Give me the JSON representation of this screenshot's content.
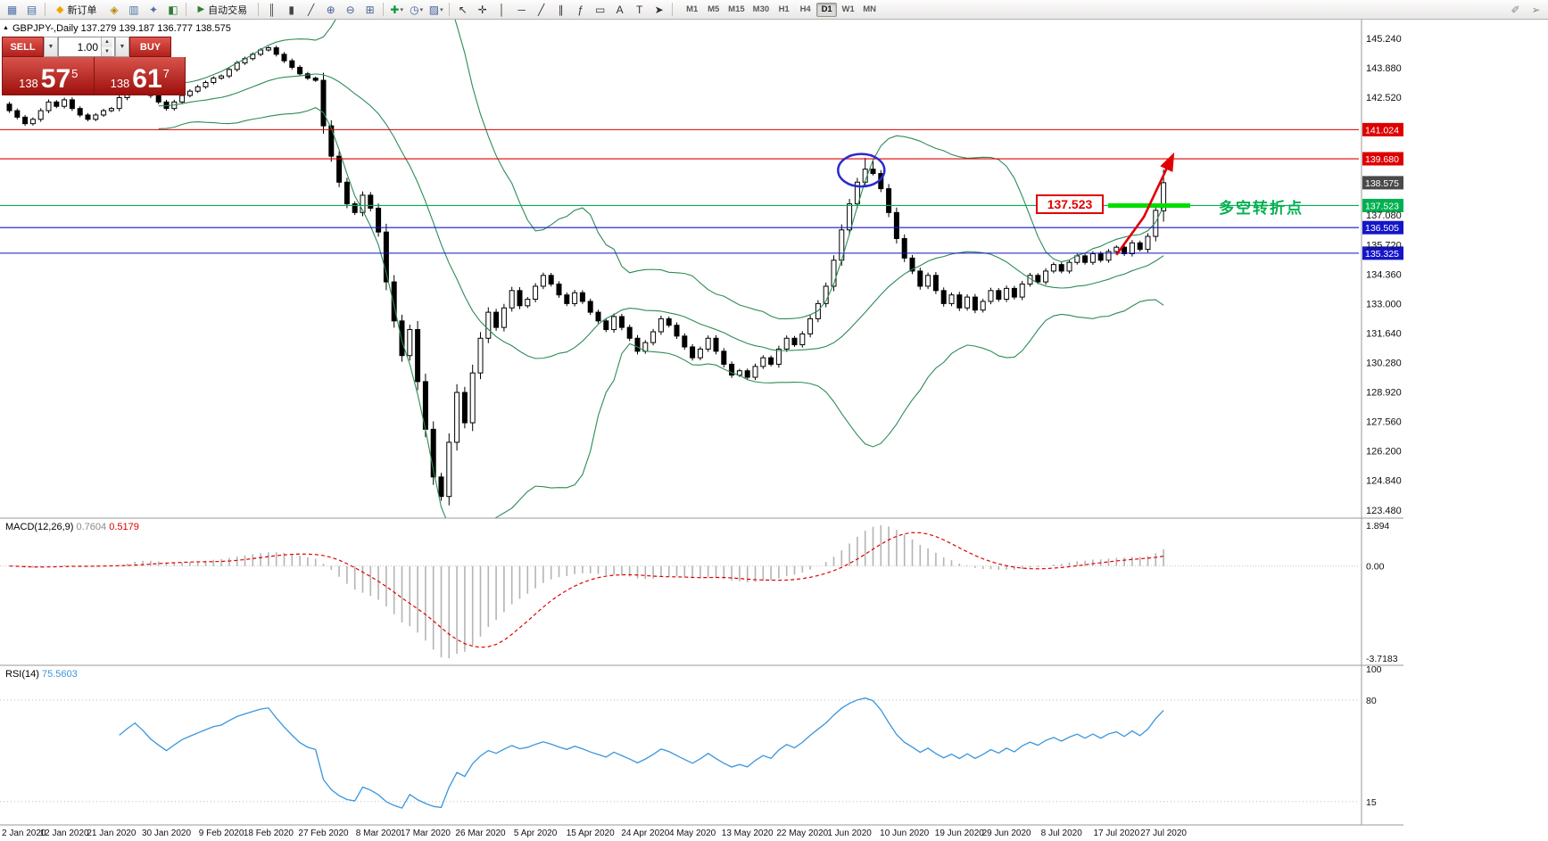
{
  "toolbar": {
    "new_order": {
      "label": "新订单",
      "icon_glyph": "◆",
      "icon_color": "#f0a500"
    },
    "auto_trading": {
      "label": "自动交易",
      "icon_glyph": "▶",
      "icon_color": "#2e7d32"
    },
    "groups": {
      "left": [
        {
          "name": "new-chart",
          "glyph": "▦",
          "color": "#4a6fa5"
        },
        {
          "name": "profiles",
          "glyph": "▤",
          "color": "#4a6fa5"
        }
      ],
      "mid": [
        {
          "name": "market-watch",
          "glyph": "◈",
          "color": "#b8860b"
        },
        {
          "name": "data-window",
          "glyph": "▥",
          "color": "#4a6fa5"
        },
        {
          "name": "navigator",
          "glyph": "✦",
          "color": "#4a6fa5"
        },
        {
          "name": "terminal",
          "glyph": "◧",
          "color": "#2e7d32"
        }
      ],
      "chart": [
        {
          "name": "bar-chart",
          "glyph": "║",
          "color": "#444444"
        },
        {
          "name": "candlestick-chart",
          "glyph": "▮",
          "color": "#444444"
        },
        {
          "name": "line-chart",
          "glyph": "╱",
          "color": "#444444"
        },
        {
          "name": "zoom-in",
          "glyph": "⊕",
          "color": "#44609a"
        },
        {
          "name": "zoom-out",
          "glyph": "⊖",
          "color": "#44609a"
        },
        {
          "name": "tile-windows",
          "glyph": "⊞",
          "color": "#44609a"
        }
      ],
      "indicators": [
        {
          "name": "indicators",
          "glyph": "✚",
          "color": "#0a9a3c",
          "caret": true
        },
        {
          "name": "periods",
          "glyph": "◷",
          "color": "#44609a",
          "caret": true
        },
        {
          "name": "templates",
          "glyph": "▨",
          "color": "#44609a",
          "caret": true
        }
      ],
      "draw": [
        {
          "name": "cursor",
          "glyph": "↖",
          "color": "#333333"
        },
        {
          "name": "crosshair",
          "glyph": "✛",
          "color": "#333333"
        },
        {
          "name": "vertical-line",
          "glyph": "│",
          "color": "#333333"
        },
        {
          "name": "horizontal-line",
          "glyph": "─",
          "color": "#333333"
        },
        {
          "name": "trendline",
          "glyph": "╱",
          "color": "#333333"
        },
        {
          "name": "equidistant-channel",
          "glyph": "∥",
          "color": "#333333"
        },
        {
          "name": "fibonacci",
          "glyph": "ƒ",
          "color": "#333333"
        },
        {
          "name": "shapes",
          "glyph": "▭",
          "color": "#333333"
        },
        {
          "name": "text",
          "glyph": "A",
          "color": "#333333"
        },
        {
          "name": "text-label",
          "glyph": "T",
          "color": "#333333"
        },
        {
          "name": "arrows",
          "glyph": "➤",
          "color": "#333333"
        }
      ],
      "right": [
        {
          "name": "chart-shift",
          "glyph": "✐",
          "color": "#888888"
        },
        {
          "name": "auto-scroll",
          "glyph": "➢",
          "color": "#888888"
        }
      ]
    },
    "timeframes": [
      {
        "label": "M1"
      },
      {
        "label": "M5"
      },
      {
        "label": "M15"
      },
      {
        "label": "M30"
      },
      {
        "label": "H1"
      },
      {
        "label": "H4"
      },
      {
        "label": "D1",
        "active": true
      },
      {
        "label": "W1"
      },
      {
        "label": "MN"
      }
    ]
  },
  "quote_panel": {
    "collapse_glyph": "▲",
    "title_line": "GBPJPY-,Daily  137.279 139.187 136.777 138.575",
    "sell_label": "SELL",
    "buy_label": "BUY",
    "volume": "1.00",
    "sell": {
      "small": "138",
      "big": "57",
      "sup": "5"
    },
    "buy": {
      "small": "138",
      "big": "61",
      "sup": "7"
    }
  },
  "chart_data": {
    "type": "candlestick",
    "symbol": "GBPJPY-,Daily",
    "quote": {
      "open": 137.279,
      "high": 139.187,
      "low": 136.777,
      "close": 138.575
    },
    "closes": [
      141.9,
      141.6,
      141.3,
      141.5,
      141.9,
      142.3,
      142.1,
      142.4,
      142.0,
      141.7,
      141.5,
      141.7,
      141.9,
      142.0,
      142.5,
      142.9,
      143.3,
      143.0,
      142.6,
      142.3,
      142.0,
      142.3,
      142.6,
      142.8,
      143.0,
      143.2,
      143.4,
      143.5,
      143.8,
      144.1,
      144.3,
      144.5,
      144.7,
      144.8,
      144.5,
      144.2,
      143.9,
      143.6,
      143.4,
      143.3,
      141.2,
      139.8,
      138.6,
      137.6,
      137.2,
      138.0,
      137.4,
      136.3,
      134.0,
      132.2,
      130.6,
      131.8,
      129.4,
      127.2,
      125.0,
      124.1,
      126.6,
      128.9,
      127.5,
      129.8,
      131.4,
      132.6,
      131.9,
      132.8,
      133.6,
      132.9,
      133.2,
      133.8,
      134.3,
      133.9,
      133.4,
      133.0,
      133.5,
      133.1,
      132.6,
      132.2,
      131.8,
      132.4,
      131.9,
      131.4,
      130.8,
      131.2,
      131.7,
      132.3,
      132.0,
      131.5,
      131.0,
      130.5,
      130.9,
      131.4,
      130.8,
      130.2,
      129.7,
      129.9,
      129.6,
      130.1,
      130.5,
      130.2,
      130.9,
      131.4,
      131.1,
      131.6,
      132.3,
      133.0,
      133.8,
      135.0,
      136.4,
      137.6,
      138.6,
      139.2,
      139.0,
      138.3,
      137.2,
      136.0,
      135.1,
      134.5,
      133.8,
      134.3,
      133.6,
      133.0,
      133.4,
      132.8,
      133.3,
      132.7,
      133.1,
      133.6,
      133.2,
      133.7,
      133.3,
      133.9,
      134.3,
      134.0,
      134.5,
      134.8,
      134.5,
      134.9,
      135.2,
      134.9,
      135.3,
      135.0,
      135.4,
      135.6,
      135.3,
      135.8,
      135.5,
      136.1,
      137.3,
      138.575
    ],
    "last_candle": {
      "o": 137.279,
      "h": 139.187,
      "l": 136.777,
      "c": 138.575
    },
    "wick_overrides": {
      "55": {
        "low": 123.9
      },
      "109": {
        "high": 139.72
      },
      "110": {
        "high": 139.6
      }
    },
    "bollinger": {
      "period": 20,
      "deviation": 2,
      "color": "#2e8b57"
    },
    "hlines": [
      {
        "price": 141.024,
        "color": "#dd0000",
        "label": "141.024"
      },
      {
        "price": 139.68,
        "color": "#dd0000",
        "label": "139.680"
      },
      {
        "price": 137.523,
        "color": "#00b050",
        "label": "137.523"
      },
      {
        "price": 136.505,
        "color": "#1515c8",
        "label": "136.505"
      },
      {
        "price": 135.325,
        "color": "#1515c8",
        "label": "135.325"
      }
    ],
    "bid": {
      "value": 138.575,
      "label": "138.575",
      "badge_color": "#4a4a4a"
    },
    "y_ticks": [
      145.24,
      143.88,
      142.52,
      137.08,
      135.72,
      134.36,
      133.0,
      131.64,
      130.28,
      128.92,
      127.56,
      126.2,
      124.84,
      123.48
    ],
    "x_labels": [
      {
        "label": "2 Jan 2020",
        "i": 0
      },
      {
        "label": "12 Jan 2020",
        "i": 7
      },
      {
        "label": "21 Jan 2020",
        "i": 13
      },
      {
        "label": "30 Jan 2020",
        "i": 20
      },
      {
        "label": "9 Feb 2020",
        "i": 27
      },
      {
        "label": "18 Feb 2020",
        "i": 33
      },
      {
        "label": "27 Feb 2020",
        "i": 40
      },
      {
        "label": "8 Mar 2020",
        "i": 47
      },
      {
        "label": "17 Mar 2020",
        "i": 53
      },
      {
        "label": "26 Mar 2020",
        "i": 60
      },
      {
        "label": "5 Apr 2020",
        "i": 67
      },
      {
        "label": "15 Apr 2020",
        "i": 74
      },
      {
        "label": "24 Apr 2020",
        "i": 81
      },
      {
        "label": "4 May 2020",
        "i": 87
      },
      {
        "label": "13 May 2020",
        "i": 94
      },
      {
        "label": "22 May 2020",
        "i": 101
      },
      {
        "label": "1 Jun 2020",
        "i": 107
      },
      {
        "label": "10 Jun 2020",
        "i": 114
      },
      {
        "label": "19 Jun 2020",
        "i": 121
      },
      {
        "label": "29 Jun 2020",
        "i": 127
      },
      {
        "label": "8 Jul 2020",
        "i": 134
      },
      {
        "label": "17 Jul 2020",
        "i": 141
      },
      {
        "label": "27 Jul 2020",
        "i": 147
      }
    ],
    "macd": {
      "title": "MACD(12,26,9)",
      "main_value": "0.7604",
      "signal_value": "0.5179",
      "axis_max": "1.894",
      "axis_zero": "0.00",
      "axis_min": "-3.7183",
      "fast": 12,
      "slow": 26,
      "signal": 9,
      "hist_color": "#b4b4b4",
      "signal_color": "#e00000"
    },
    "rsi": {
      "title": "RSI(14)",
      "value": "75.5603",
      "period": 14,
      "levels": [
        80,
        15
      ],
      "axis_labels": [
        "100",
        "80",
        "15"
      ],
      "color": "#3a96dd"
    },
    "annotations": {
      "level_label": "137.523",
      "pivot_text": "多空转折点",
      "ellipse_color": "#2a2ad0",
      "arrow_color": "#e00000",
      "highlight_color": "#00dd00"
    }
  }
}
